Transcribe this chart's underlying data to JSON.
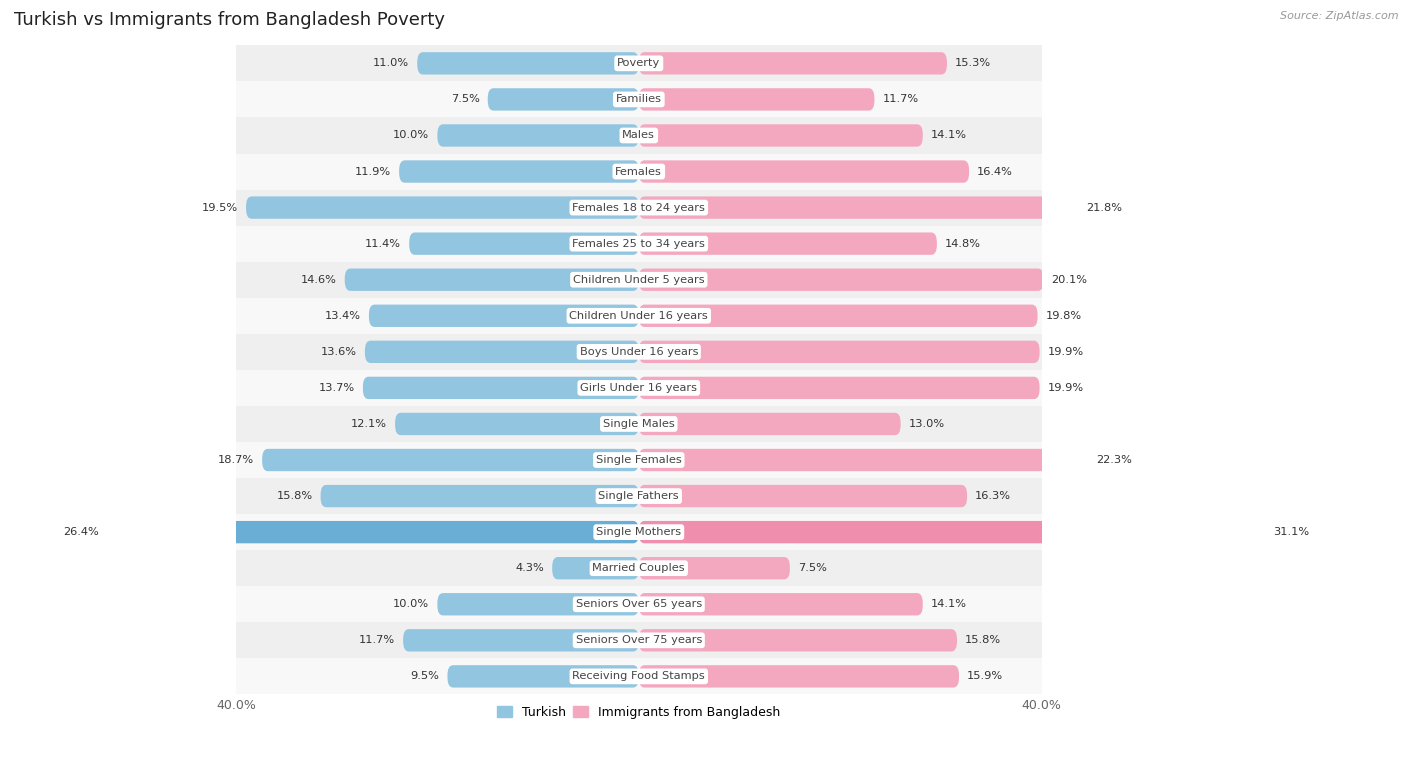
{
  "title": "Turkish vs Immigrants from Bangladesh Poverty",
  "source": "Source: ZipAtlas.com",
  "categories": [
    "Poverty",
    "Families",
    "Males",
    "Females",
    "Females 18 to 24 years",
    "Females 25 to 34 years",
    "Children Under 5 years",
    "Children Under 16 years",
    "Boys Under 16 years",
    "Girls Under 16 years",
    "Single Males",
    "Single Females",
    "Single Fathers",
    "Single Mothers",
    "Married Couples",
    "Seniors Over 65 years",
    "Seniors Over 75 years",
    "Receiving Food Stamps"
  ],
  "turkish": [
    11.0,
    7.5,
    10.0,
    11.9,
    19.5,
    11.4,
    14.6,
    13.4,
    13.6,
    13.7,
    12.1,
    18.7,
    15.8,
    26.4,
    4.3,
    10.0,
    11.7,
    9.5
  ],
  "bangladesh": [
    15.3,
    11.7,
    14.1,
    16.4,
    21.8,
    14.8,
    20.1,
    19.8,
    19.9,
    19.9,
    13.0,
    22.3,
    16.3,
    31.1,
    7.5,
    14.1,
    15.8,
    15.9
  ],
  "turkish_color": "#92C5E0",
  "bangladesh_color": "#F4A8BF",
  "highlight_turkish_color": "#6AADD5",
  "highlight_bangladesh_color": "#EF8FAD",
  "row_bg_odd": "#EFEFEF",
  "row_bg_even": "#F8F8F8",
  "xlim": [
    0,
    40
  ],
  "bar_height": 0.62,
  "legend_turkish": "Turkish",
  "legend_bangladesh": "Immigrants from Bangladesh",
  "title_fontsize": 13,
  "label_fontsize": 8.2,
  "value_fontsize": 8.2,
  "figsize": [
    14.06,
    7.58
  ]
}
